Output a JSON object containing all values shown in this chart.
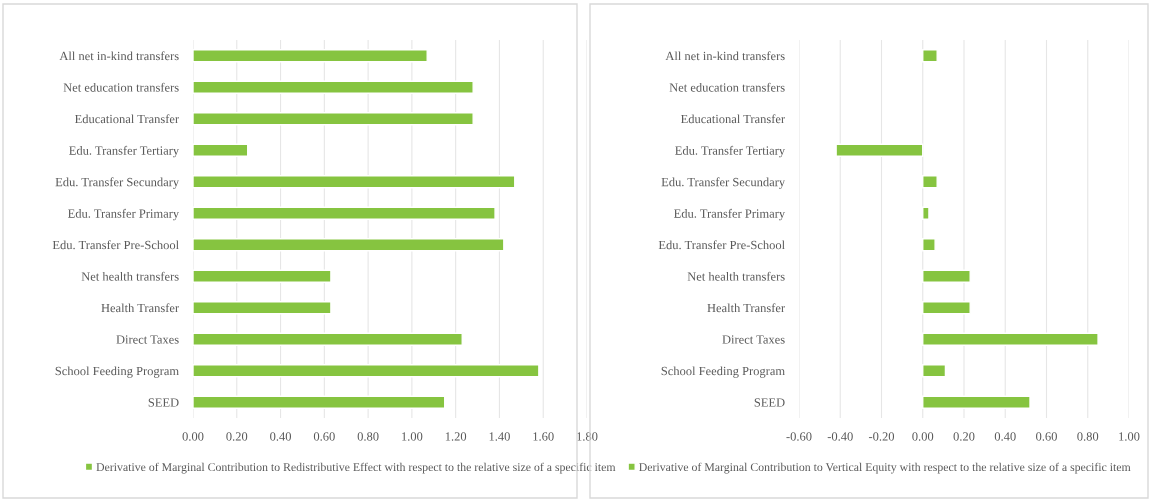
{
  "chart_data": [
    {
      "type": "bar",
      "orientation": "horizontal",
      "categories": [
        "All net in-kind transfers",
        "Net education transfers",
        "Educational Transfer",
        "Edu. Transfer Tertiary",
        "Edu. Transfer Secundary",
        "Edu. Transfer Primary",
        "Edu. Transfer Pre-School",
        "Net health transfers",
        "Health Transfer",
        "Direct Taxes",
        "School Feeding Program",
        "SEED"
      ],
      "series": [
        {
          "name": "Derivative of Marginal Contribution to Redistributive Effect with respect to the relative size of a specific item",
          "color": "#86c440",
          "values": [
            1.07,
            1.28,
            1.28,
            0.25,
            1.47,
            1.38,
            1.42,
            0.63,
            0.63,
            1.23,
            1.58,
            1.15
          ]
        }
      ],
      "xlim": [
        0,
        1.8
      ],
      "xticks": [
        {
          "value": 0,
          "label": "0.00"
        },
        {
          "value": 0.2,
          "label": "0.20"
        },
        {
          "value": 0.4,
          "label": "0.40"
        },
        {
          "value": 0.6,
          "label": "0.60"
        },
        {
          "value": 0.8,
          "label": "0.80"
        },
        {
          "value": 1.0,
          "label": "1.00"
        },
        {
          "value": 1.2,
          "label": "1.20"
        },
        {
          "value": 1.4,
          "label": "1.40"
        },
        {
          "value": 1.6,
          "label": "1.60"
        },
        {
          "value": 1.8,
          "label": "1.80"
        }
      ],
      "grid": "x",
      "legend": "bottom"
    },
    {
      "type": "bar",
      "orientation": "horizontal",
      "categories": [
        "All net in-kind transfers",
        "Net education transfers",
        "Educational Transfer",
        "Edu. Transfer Tertiary",
        "Edu. Transfer Secundary",
        "Edu. Transfer Primary",
        "Edu. Transfer Pre-School",
        "Net health transfers",
        "Health Transfer",
        "Direct Taxes",
        "School Feeding Program",
        "SEED"
      ],
      "series": [
        {
          "name": "Derivative of Marginal Contribution to Vertical Equity with respect to the relative size of a specific item",
          "color": "#86c440",
          "values": [
            0.07,
            null,
            null,
            -0.42,
            0.07,
            0.03,
            0.06,
            0.23,
            0.23,
            0.85,
            0.11,
            0.52
          ]
        }
      ],
      "xlim": [
        -0.6,
        1.0
      ],
      "xticks": [
        {
          "value": -0.6,
          "label": "-0.60"
        },
        {
          "value": -0.4,
          "label": "-0.40"
        },
        {
          "value": -0.2,
          "label": "-0.20"
        },
        {
          "value": 0,
          "label": "0.00"
        },
        {
          "value": 0.2,
          "label": "0.20"
        },
        {
          "value": 0.4,
          "label": "0.40"
        },
        {
          "value": 0.6,
          "label": "0.60"
        },
        {
          "value": 0.8,
          "label": "0.80"
        },
        {
          "value": 1.0,
          "label": "1.00"
        }
      ],
      "grid": "x",
      "legend": "bottom"
    }
  ]
}
